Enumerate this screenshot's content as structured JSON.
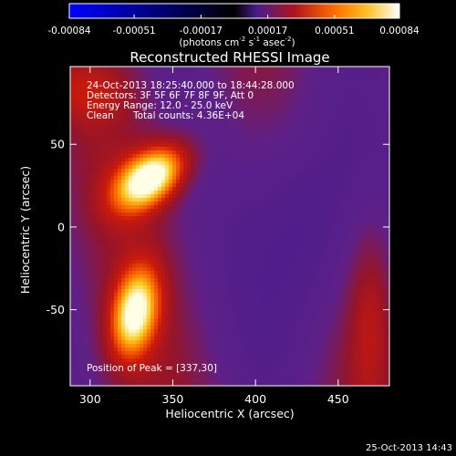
{
  "colorbar": {
    "tick_labels": [
      "-0.00084",
      "-0.00051",
      "-0.00017",
      "0.00017",
      "0.00051",
      "0.00084"
    ],
    "tick_values": [
      -0.00084,
      -0.00051,
      -0.00017,
      0.00017,
      0.00051,
      0.00084
    ],
    "range": [
      -0.00084,
      0.00084
    ],
    "units_main": "(photons cm",
    "units_exp1": "-2",
    "units_mid1": " s",
    "units_exp2": "-1",
    "units_mid2": " asec",
    "units_exp3": "-2",
    "units_end": ")",
    "colors": [
      "#0000ff",
      "#000000",
      "#4b1d8c",
      "#b0121e",
      "#ff6a00",
      "#ffc020",
      "#ffffff"
    ]
  },
  "chart_data": {
    "type": "heatmap",
    "title": "Reconstructed RHESSI Image",
    "xlabel": "Heliocentric X (arcsec)",
    "ylabel": "Heliocentric Y (arcsec)",
    "x_ticks": [
      300,
      350,
      400,
      450
    ],
    "y_ticks": [
      50,
      0,
      -50
    ],
    "xlim": [
      288,
      481
    ],
    "ylim": [
      -96,
      97
    ],
    "sources": [
      {
        "x": 337,
        "y": 30,
        "relative_peak": 1.0
      },
      {
        "x": 327,
        "y": -52,
        "relative_peak": 0.85
      }
    ],
    "peak_position": [
      337,
      30
    ]
  },
  "annotations": {
    "line1": "24-Oct-2013 18:25:40.000 to 18:44:28.000",
    "line2": "Detectors: 3F 5F 6F 7F 8F 9F, Att 0",
    "line3": "Energy Range: 12.0 - 25.0 keV",
    "line4_a": "Clean",
    "line4_b": "Total counts: 4.36E+04",
    "peak": "Position of Peak = [337,30]"
  },
  "timestamp": "25-Oct-2013 14:43"
}
